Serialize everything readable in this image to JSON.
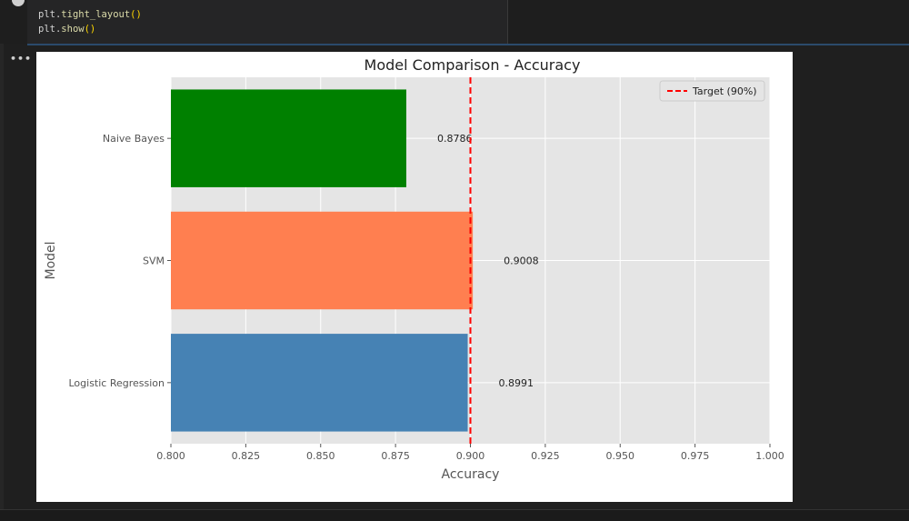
{
  "notebook": {
    "code_lines": [
      "plt.tight_layout()",
      "plt.show()"
    ],
    "output_menu_label": "•••",
    "colors": {
      "background": "#1f1f1f",
      "cell_border": "#2b4a6b",
      "code_text": "#d4d4d4",
      "code_func": "#dcdcaa",
      "code_paren": "#ffd700"
    }
  },
  "chart_data": {
    "type": "bar",
    "orientation": "horizontal",
    "title": "Model Comparison - Accuracy",
    "xlabel": "Accuracy",
    "ylabel": "Model",
    "xlim": [
      0.8,
      1.0
    ],
    "x_ticks": [
      "0.800",
      "0.825",
      "0.850",
      "0.875",
      "0.900",
      "0.925",
      "0.950",
      "0.975",
      "1.000"
    ],
    "categories": [
      "Logistic Regression",
      "SVM",
      "Naive Bayes"
    ],
    "values": [
      0.8991,
      0.9008,
      0.8786
    ],
    "value_labels": [
      "0.8991",
      "0.9008",
      "0.8786"
    ],
    "bar_colors": [
      "#4682b4",
      "#ff7f50",
      "#008000"
    ],
    "target_line": {
      "value": 0.9,
      "label": "Target (90%)",
      "color": "#ff0000",
      "style": "dashed"
    },
    "grid": true,
    "legend_position": "upper-right",
    "style": "ggplot"
  }
}
